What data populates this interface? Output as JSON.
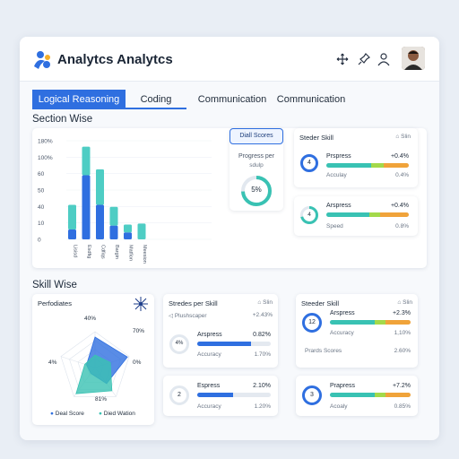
{
  "app": {
    "title": "Analytcs Analytcs"
  },
  "tabs": [
    "Logical Reasoning",
    "Coding",
    "Communication",
    "Communication"
  ],
  "sections": {
    "section_wise": "Section Wise",
    "skill_wise": "Skill Wise"
  },
  "chart_data": {
    "type": "bar",
    "categories": [
      "Lisisd",
      "Esdfig",
      "Cdfiqs",
      "Bargin",
      "Matfion",
      "Meesion"
    ],
    "y_ticks": [
      "180%",
      "100%",
      "60",
      "50",
      "40",
      "10",
      "0"
    ],
    "series": [
      {
        "values": [
          10,
          65,
          35,
          14,
          7,
          0
        ]
      },
      {
        "values": [
          25,
          29,
          36,
          19,
          8,
          16
        ]
      }
    ],
    "colors": [
      "#2f6fe0",
      "#4ecdc4"
    ],
    "ylim": [
      0,
      100
    ]
  },
  "diall": {
    "button": "Diall Scores",
    "title": "Progress per",
    "subtitle": "sdulp",
    "value": "5%"
  },
  "steder_card": {
    "title": "Steder Skill",
    "status": "Slin",
    "items": [
      {
        "ring": "4",
        "name": "Prspress",
        "delta": "+0.4%",
        "sub": "Acculay",
        "value": "0.4%"
      },
      {
        "ring": "4",
        "name": "Arspress",
        "delta": "+0.4%",
        "sub": "Speed",
        "value": "0.8%"
      }
    ]
  },
  "radar": {
    "title": "Perfodiates",
    "labels": [
      "40%",
      "70%",
      "0%",
      "81%",
      "4%"
    ],
    "legend": [
      "Deal Score",
      "Died Wation"
    ],
    "values": {
      "series1": [
        0.85,
        0.95,
        0.55,
        0.2,
        0.25
      ],
      "series2": [
        0.35,
        0.45,
        0.8,
        0.9,
        0.3
      ]
    }
  },
  "stredes_card": {
    "title": "Stredes per Skill",
    "status": "Slin",
    "sub": "Plushscaper",
    "sub_value": "+2.43%",
    "item": {
      "ring": "4%",
      "name": "Arspress",
      "value": "0.82%",
      "sub": "Accuracy",
      "sub_value": "1.70%"
    }
  },
  "espress_card": {
    "ring": "2",
    "name": "Espress",
    "value": "2.10%",
    "sub": "Accuracy",
    "sub_value": "1.20%"
  },
  "steder2_card": {
    "title": "Steeder Skill",
    "status": "Slin",
    "item": {
      "ring": "12",
      "name": "Arspress",
      "value": "+2.3%",
      "sub": "Accuracy",
      "sub_value": "1,10%"
    },
    "row": {
      "name": "Prards Scores",
      "value": "2.60%"
    }
  },
  "prapress_card": {
    "ring": "3",
    "name": "Prapress",
    "value": "+7.2%",
    "sub": "Acoaly",
    "sub_value": "0.85%"
  }
}
